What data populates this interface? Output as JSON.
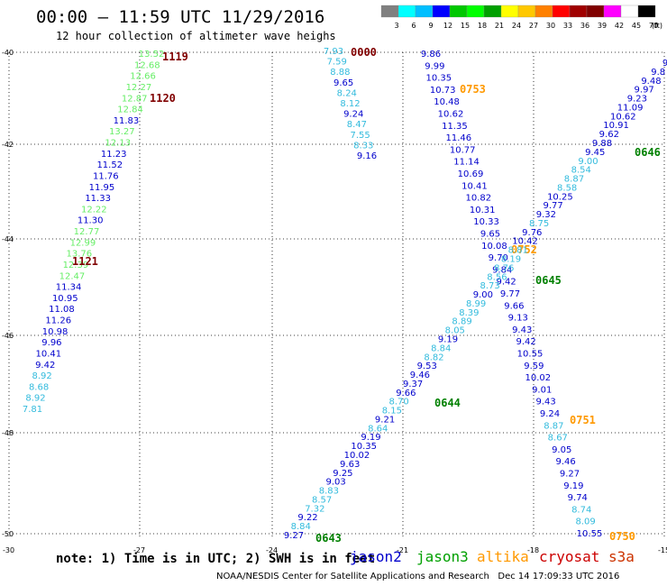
{
  "header": {
    "title": "00:00 — 11:59 UTC 11/29/2016",
    "subtitle": "12 hour collection of altimeter wave heighs"
  },
  "colorbar": {
    "unit": "(ft)",
    "colors": [
      "#808080",
      "#00ffff",
      "#00bfff",
      "#0000ff",
      "#00c800",
      "#00ff00",
      "#00a000",
      "#ffff00",
      "#ffc800",
      "#ff8000",
      "#ff0000",
      "#a00000",
      "#800000",
      "#ff00ff",
      "#ffffff",
      "#000000"
    ],
    "labels": [
      "3",
      "6",
      "9",
      "12",
      "15",
      "18",
      "21",
      "24",
      "27",
      "30",
      "33",
      "36",
      "39",
      "42",
      "45",
      "70"
    ]
  },
  "axes": {
    "y_ticks": [
      "-40",
      "-42",
      "-44",
      "-46",
      "-48",
      "-50"
    ],
    "x_ticks": [
      "-30",
      "-27",
      "-24",
      "-21",
      "-18",
      "-15"
    ]
  },
  "footer": {
    "note": "note: 1) Time is in UTC; 2) SWH is in feet",
    "satellites": [
      {
        "name": "jason2",
        "color": "#0000cc"
      },
      {
        "name": "jason3",
        "color": "#00a000"
      },
      {
        "name": "altika",
        "color": "#ff9900"
      },
      {
        "name": "cryosat",
        "color": "#cc0000"
      },
      {
        "name": "s3a",
        "color": "#cc3300"
      }
    ],
    "credits": "NOAA/NESDIS Center for Satellite Applications and Research   Dec 14 17:09:33 UTC 2016"
  },
  "color_scale": {
    "low": "#33bbdd",
    "mid": "#0000cc",
    "green_light": "#66ee66",
    "green": "#55cc55",
    "time_red": "#800000",
    "time_orange": "#ff9900",
    "time_green": "#008000"
  },
  "tracks": [
    {
      "id": "track-a",
      "values": [
        {
          "v": "13.52",
          "c": "green_light"
        },
        {
          "v": "12.68",
          "c": "green_light"
        },
        {
          "v": "12.66",
          "c": "green_light"
        },
        {
          "v": "12.27",
          "c": "green_light"
        },
        {
          "v": "12.87",
          "c": "green_light"
        },
        {
          "v": "12.84",
          "c": "green_light"
        },
        {
          "v": "11.83",
          "c": "mid"
        },
        {
          "v": "13.27",
          "c": "green_light"
        },
        {
          "v": "12.13",
          "c": "green_light"
        },
        {
          "v": "11.23",
          "c": "mid"
        },
        {
          "v": "11.52",
          "c": "mid"
        },
        {
          "v": "11.76",
          "c": "mid"
        },
        {
          "v": "11.95",
          "c": "mid"
        },
        {
          "v": "11.33",
          "c": "mid"
        },
        {
          "v": "12.22",
          "c": "green_light"
        },
        {
          "v": "11.30",
          "c": "mid"
        },
        {
          "v": "12.77",
          "c": "green_light"
        },
        {
          "v": "12.99",
          "c": "green_light"
        },
        {
          "v": "13.76",
          "c": "green_light"
        },
        {
          "v": "12.39",
          "c": "green_light"
        },
        {
          "v": "12.47",
          "c": "green_light"
        },
        {
          "v": "11.34",
          "c": "mid"
        },
        {
          "v": "10.95",
          "c": "mid"
        },
        {
          "v": "11.08",
          "c": "mid"
        },
        {
          "v": "11.26",
          "c": "mid"
        },
        {
          "v": "10.98",
          "c": "mid"
        },
        {
          "v": "9.96",
          "c": "mid"
        },
        {
          "v": "10.41",
          "c": "mid"
        },
        {
          "v": "9.42",
          "c": "mid"
        },
        {
          "v": "8.92",
          "c": "low"
        },
        {
          "v": "8.68",
          "c": "low"
        },
        {
          "v": "8.92",
          "c": "low"
        },
        {
          "v": "7.81",
          "c": "low"
        }
      ],
      "times": [
        {
          "t": "1119",
          "c": "time_red"
        },
        {
          "t": "1120",
          "c": "time_red"
        },
        {
          "t": "1121",
          "c": "time_red"
        }
      ]
    },
    {
      "id": "track-b",
      "values": [
        {
          "v": "7.93",
          "c": "low"
        },
        {
          "v": "7.59",
          "c": "low"
        },
        {
          "v": "8.88",
          "c": "low"
        },
        {
          "v": "9.65",
          "c": "mid"
        },
        {
          "v": "8.24",
          "c": "low"
        },
        {
          "v": "8.12",
          "c": "low"
        },
        {
          "v": "9.24",
          "c": "mid"
        },
        {
          "v": "8.47",
          "c": "low"
        },
        {
          "v": "7.55",
          "c": "low"
        },
        {
          "v": "8.33",
          "c": "low"
        },
        {
          "v": "9.16",
          "c": "mid"
        }
      ],
      "times": [
        {
          "t": "0000",
          "c": "time_red"
        }
      ]
    },
    {
      "id": "track-c",
      "values": [
        {
          "v": "9.86",
          "c": "mid"
        },
        {
          "v": "9.99",
          "c": "mid"
        },
        {
          "v": "10.35",
          "c": "mid"
        },
        {
          "v": "10.73",
          "c": "mid"
        },
        {
          "v": "10.48",
          "c": "mid"
        },
        {
          "v": "10.62",
          "c": "mid"
        },
        {
          "v": "11.35",
          "c": "mid"
        },
        {
          "v": "11.46",
          "c": "mid"
        },
        {
          "v": "10.77",
          "c": "mid"
        },
        {
          "v": "11.14",
          "c": "mid"
        },
        {
          "v": "10.69",
          "c": "mid"
        },
        {
          "v": "10.41",
          "c": "mid"
        },
        {
          "v": "10.82",
          "c": "mid"
        },
        {
          "v": "10.31",
          "c": "mid"
        },
        {
          "v": "10.33",
          "c": "mid"
        },
        {
          "v": "9.65",
          "c": "mid"
        },
        {
          "v": "10.08",
          "c": "mid"
        },
        {
          "v": "9.70",
          "c": "mid"
        },
        {
          "v": "9.84",
          "c": "mid"
        },
        {
          "v": "9.42",
          "c": "mid"
        },
        {
          "v": "9.77",
          "c": "mid"
        },
        {
          "v": "9.66",
          "c": "mid"
        },
        {
          "v": "9.13",
          "c": "mid"
        },
        {
          "v": "9.43",
          "c": "mid"
        },
        {
          "v": "9.42",
          "c": "mid"
        },
        {
          "v": "10.55",
          "c": "mid"
        },
        {
          "v": "9.59",
          "c": "mid"
        },
        {
          "v": "10.02",
          "c": "mid"
        },
        {
          "v": "9.01",
          "c": "mid"
        },
        {
          "v": "9.43",
          "c": "mid"
        },
        {
          "v": "9.24",
          "c": "mid"
        },
        {
          "v": "8.87",
          "c": "low"
        },
        {
          "v": "8.67",
          "c": "low"
        },
        {
          "v": "9.05",
          "c": "mid"
        },
        {
          "v": "9.46",
          "c": "mid"
        },
        {
          "v": "9.27",
          "c": "mid"
        },
        {
          "v": "9.19",
          "c": "mid"
        },
        {
          "v": "9.74",
          "c": "mid"
        },
        {
          "v": "8.74",
          "c": "low"
        },
        {
          "v": "8.09",
          "c": "low"
        },
        {
          "v": "10.55",
          "c": "mid"
        }
      ],
      "times": [
        {
          "t": "0753",
          "c": "time_orange"
        },
        {
          "t": "0752",
          "c": "time_orange"
        },
        {
          "t": "0751",
          "c": "time_orange"
        },
        {
          "t": "0750",
          "c": "time_orange"
        }
      ]
    },
    {
      "id": "track-d",
      "values": [
        {
          "v": "9.27",
          "c": "mid"
        },
        {
          "v": "8.84",
          "c": "low"
        },
        {
          "v": "9.22",
          "c": "mid"
        },
        {
          "v": "7.32",
          "c": "low"
        },
        {
          "v": "8.57",
          "c": "low"
        },
        {
          "v": "8.83",
          "c": "low"
        },
        {
          "v": "9.03",
          "c": "mid"
        },
        {
          "v": "9.25",
          "c": "mid"
        },
        {
          "v": "9.63",
          "c": "mid"
        },
        {
          "v": "10.02",
          "c": "mid"
        },
        {
          "v": "10.35",
          "c": "mid"
        },
        {
          "v": "9.19",
          "c": "mid"
        },
        {
          "v": "8.64",
          "c": "low"
        },
        {
          "v": "9.21",
          "c": "mid"
        },
        {
          "v": "8.15",
          "c": "low"
        },
        {
          "v": "8.70",
          "c": "low"
        },
        {
          "v": "9.66",
          "c": "mid"
        },
        {
          "v": "9.37",
          "c": "mid"
        },
        {
          "v": "9.46",
          "c": "mid"
        },
        {
          "v": "9.53",
          "c": "mid"
        },
        {
          "v": "8.82",
          "c": "low"
        },
        {
          "v": "8.84",
          "c": "low"
        },
        {
          "v": "9.19",
          "c": "mid"
        },
        {
          "v": "8.05",
          "c": "low"
        },
        {
          "v": "8.89",
          "c": "low"
        },
        {
          "v": "8.39",
          "c": "low"
        },
        {
          "v": "8.99",
          "c": "low"
        },
        {
          "v": "9.00",
          "c": "mid"
        },
        {
          "v": "8.73",
          "c": "low"
        },
        {
          "v": "8.56",
          "c": "low"
        },
        {
          "v": "8.76",
          "c": "low"
        },
        {
          "v": "8.19",
          "c": "low"
        },
        {
          "v": "8.81",
          "c": "low"
        },
        {
          "v": "10.42",
          "c": "mid"
        },
        {
          "v": "9.76",
          "c": "mid"
        },
        {
          "v": "8.75",
          "c": "low"
        },
        {
          "v": "9.32",
          "c": "mid"
        },
        {
          "v": "9.77",
          "c": "mid"
        },
        {
          "v": "10.25",
          "c": "mid"
        },
        {
          "v": "8.58",
          "c": "low"
        },
        {
          "v": "8.87",
          "c": "low"
        },
        {
          "v": "8.54",
          "c": "low"
        },
        {
          "v": "9.00",
          "c": "low"
        },
        {
          "v": "9.45",
          "c": "mid"
        },
        {
          "v": "9.88",
          "c": "mid"
        },
        {
          "v": "9.62",
          "c": "mid"
        },
        {
          "v": "10.91",
          "c": "mid"
        },
        {
          "v": "10.62",
          "c": "mid"
        },
        {
          "v": "11.09",
          "c": "mid"
        },
        {
          "v": "9.23",
          "c": "mid"
        },
        {
          "v": "9.97",
          "c": "mid"
        },
        {
          "v": "9.48",
          "c": "mid"
        },
        {
          "v": "9.8",
          "c": "mid"
        },
        {
          "v": "9",
          "c": "mid"
        }
      ],
      "times": [
        {
          "t": "0643",
          "c": "time_green"
        },
        {
          "t": "0644",
          "c": "time_green"
        },
        {
          "t": "0645",
          "c": "time_green"
        },
        {
          "t": "0646",
          "c": "time_green"
        }
      ]
    }
  ]
}
